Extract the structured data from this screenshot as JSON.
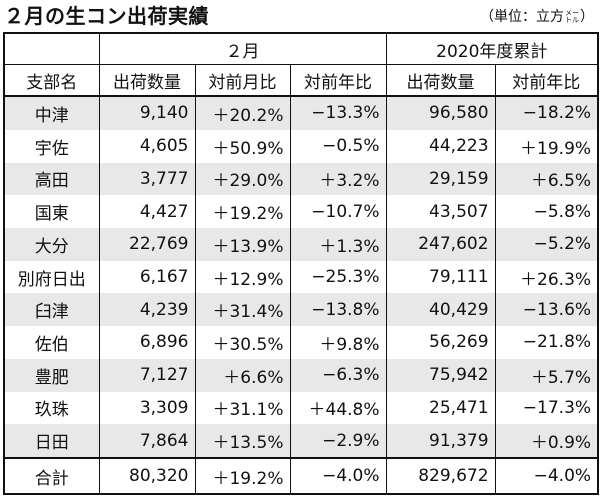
{
  "title": "２月の生コン出荷実績",
  "unit": {
    "open": "（単位：立方",
    "stack_top": "メー",
    "stack_bottom": "トル",
    "close": "）"
  },
  "header": {
    "period1": "２月",
    "period2": "2020年度累計",
    "col_branch": "支部名",
    "col_volume": "出荷数量",
    "col_mom": "対前月比",
    "col_yoy": "対前年比",
    "col_cum_volume": "出荷数量",
    "col_cum_yoy": "対前年比"
  },
  "rows": [
    {
      "name": "中津",
      "vol": "9,140",
      "mom": "＋20.2%",
      "yoy": "−13.3%",
      "cum": "96,580",
      "cum_yoy": "−18.2%"
    },
    {
      "name": "宇佐",
      "vol": "4,605",
      "mom": "＋50.9%",
      "yoy": "−0.5%",
      "cum": "44,223",
      "cum_yoy": "＋19.9%"
    },
    {
      "name": "高田",
      "vol": "3,777",
      "mom": "＋29.0%",
      "yoy": "＋3.2%",
      "cum": "29,159",
      "cum_yoy": "＋6.5%"
    },
    {
      "name": "国東",
      "vol": "4,427",
      "mom": "＋19.2%",
      "yoy": "−10.7%",
      "cum": "43,507",
      "cum_yoy": "−5.8%"
    },
    {
      "name": "大分",
      "vol": "22,769",
      "mom": "＋13.9%",
      "yoy": "＋1.3%",
      "cum": "247,602",
      "cum_yoy": "−5.2%"
    },
    {
      "name": "別府日出",
      "vol": "6,167",
      "mom": "＋12.9%",
      "yoy": "−25.3%",
      "cum": "79,111",
      "cum_yoy": "＋26.3%"
    },
    {
      "name": "臼津",
      "vol": "4,239",
      "mom": "＋31.4%",
      "yoy": "−13.8%",
      "cum": "40,429",
      "cum_yoy": "−13.6%"
    },
    {
      "name": "佐伯",
      "vol": "6,896",
      "mom": "＋30.5%",
      "yoy": "＋9.8%",
      "cum": "56,269",
      "cum_yoy": "−21.8%"
    },
    {
      "name": "豊肥",
      "vol": "7,127",
      "mom": "＋6.6%",
      "yoy": "−6.3%",
      "cum": "75,942",
      "cum_yoy": "＋5.7%"
    },
    {
      "name": "玖珠",
      "vol": "3,309",
      "mom": "＋31.1%",
      "yoy": "＋44.8%",
      "cum": "25,471",
      "cum_yoy": "−17.3%"
    },
    {
      "name": "日田",
      "vol": "7,864",
      "mom": "＋13.5%",
      "yoy": "−2.9%",
      "cum": "91,379",
      "cum_yoy": "＋0.9%"
    }
  ],
  "total": {
    "name": "合計",
    "vol": "80,320",
    "mom": "＋19.2%",
    "yoy": "−4.0%",
    "cum": "829,672",
    "cum_yoy": "−4.0%"
  },
  "colors": {
    "shade": "#e8e8e8",
    "border": "#111111"
  }
}
